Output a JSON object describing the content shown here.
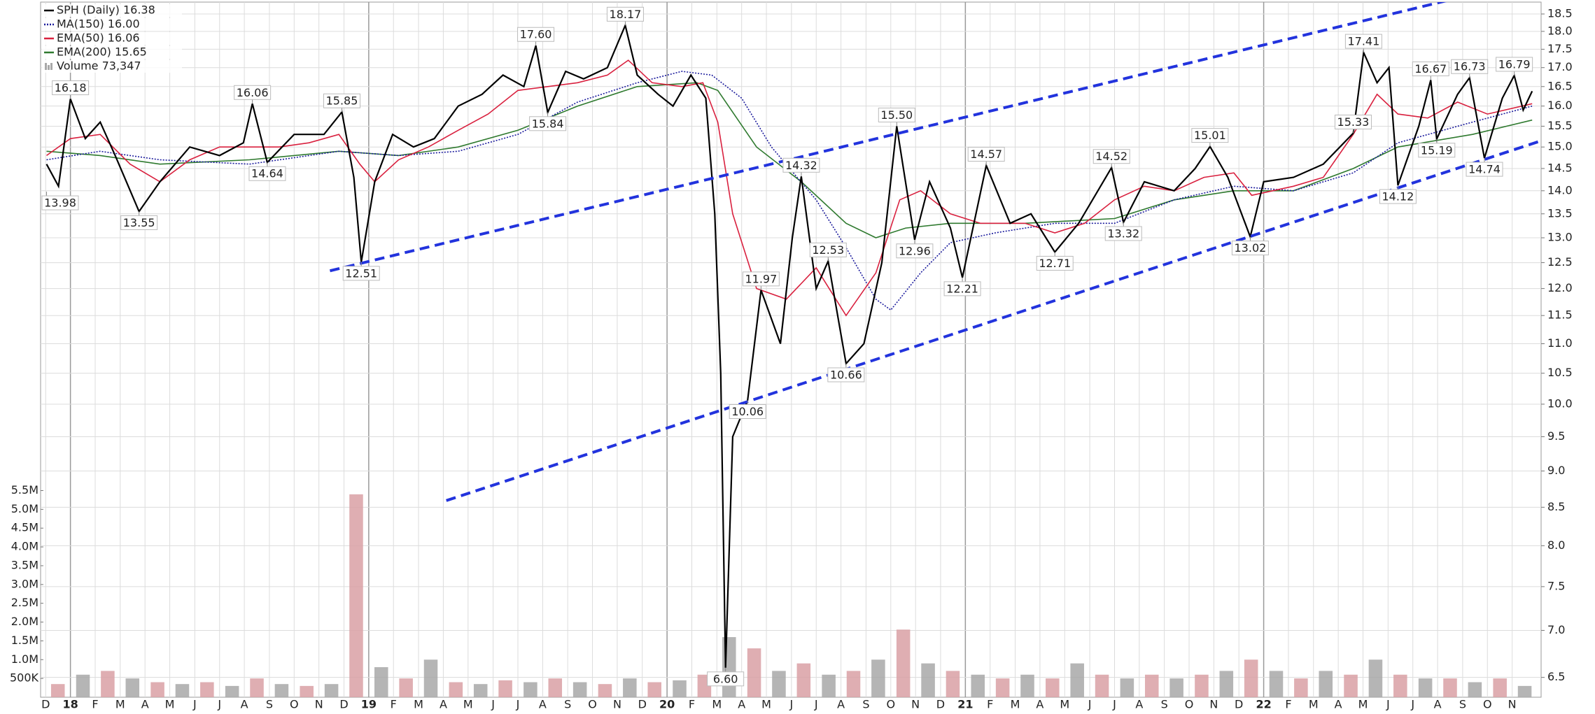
{
  "chart_data": {
    "type": "line",
    "log_scale": true,
    "grid": true,
    "xlim": [
      2017.9,
      2022.93
    ],
    "ylim": [
      6.3,
      18.85
    ],
    "xticks": [
      {
        "value": 2017.917,
        "label": "D"
      },
      {
        "value": 2018,
        "label": "18"
      },
      {
        "value": 2018.083,
        "label": "F"
      },
      {
        "value": 2018.167,
        "label": "M"
      },
      {
        "value": 2018.25,
        "label": "A"
      },
      {
        "value": 2018.333,
        "label": "M"
      },
      {
        "value": 2018.417,
        "label": "J"
      },
      {
        "value": 2018.5,
        "label": "J"
      },
      {
        "value": 2018.583,
        "label": "A"
      },
      {
        "value": 2018.667,
        "label": "S"
      },
      {
        "value": 2018.75,
        "label": "O"
      },
      {
        "value": 2018.833,
        "label": "N"
      },
      {
        "value": 2018.917,
        "label": "D"
      },
      {
        "value": 2019,
        "label": "19"
      },
      {
        "value": 2019.083,
        "label": "F"
      },
      {
        "value": 2019.167,
        "label": "M"
      },
      {
        "value": 2019.25,
        "label": "A"
      },
      {
        "value": 2019.333,
        "label": "M"
      },
      {
        "value": 2019.417,
        "label": "J"
      },
      {
        "value": 2019.5,
        "label": "J"
      },
      {
        "value": 2019.583,
        "label": "A"
      },
      {
        "value": 2019.667,
        "label": "S"
      },
      {
        "value": 2019.75,
        "label": "O"
      },
      {
        "value": 2019.833,
        "label": "N"
      },
      {
        "value": 2019.917,
        "label": "D"
      },
      {
        "value": 2020,
        "label": "20"
      },
      {
        "value": 2020.083,
        "label": "F"
      },
      {
        "value": 2020.167,
        "label": "M"
      },
      {
        "value": 2020.25,
        "label": "A"
      },
      {
        "value": 2020.333,
        "label": "M"
      },
      {
        "value": 2020.417,
        "label": "J"
      },
      {
        "value": 2020.5,
        "label": "J"
      },
      {
        "value": 2020.583,
        "label": "A"
      },
      {
        "value": 2020.667,
        "label": "S"
      },
      {
        "value": 2020.75,
        "label": "O"
      },
      {
        "value": 2020.833,
        "label": "N"
      },
      {
        "value": 2020.917,
        "label": "D"
      },
      {
        "value": 2021,
        "label": "21"
      },
      {
        "value": 2021.083,
        "label": "F"
      },
      {
        "value": 2021.167,
        "label": "M"
      },
      {
        "value": 2021.25,
        "label": "A"
      },
      {
        "value": 2021.333,
        "label": "M"
      },
      {
        "value": 2021.417,
        "label": "J"
      },
      {
        "value": 2021.5,
        "label": "J"
      },
      {
        "value": 2021.583,
        "label": "A"
      },
      {
        "value": 2021.667,
        "label": "S"
      },
      {
        "value": 2021.75,
        "label": "O"
      },
      {
        "value": 2021.833,
        "label": "N"
      },
      {
        "value": 2021.917,
        "label": "D"
      },
      {
        "value": 2022,
        "label": "22"
      },
      {
        "value": 2022.083,
        "label": "F"
      },
      {
        "value": 2022.167,
        "label": "M"
      },
      {
        "value": 2022.25,
        "label": "A"
      },
      {
        "value": 2022.333,
        "label": "M"
      },
      {
        "value": 2022.417,
        "label": "J"
      },
      {
        "value": 2022.5,
        "label": "J"
      },
      {
        "value": 2022.583,
        "label": "A"
      },
      {
        "value": 2022.667,
        "label": "S"
      },
      {
        "value": 2022.75,
        "label": "O"
      },
      {
        "value": 2022.833,
        "label": "N"
      }
    ],
    "yticks": [
      6.5,
      {
        "value": 7,
        "label": "7.0"
      },
      7.5,
      {
        "value": 8,
        "label": "8.0"
      },
      8.5,
      {
        "value": 9,
        "label": "9.0"
      },
      9.5,
      {
        "value": 10,
        "label": "10.0"
      },
      10.5,
      {
        "value": 11,
        "label": "11.0"
      },
      11.5,
      {
        "value": 12,
        "label": "12.0"
      },
      12.5,
      {
        "value": 13,
        "label": "13.0"
      },
      13.5,
      {
        "value": 14,
        "label": "14.0"
      },
      14.5,
      {
        "value": 15,
        "label": "15.0"
      },
      15.5,
      {
        "value": 16,
        "label": "16.0"
      },
      16.5,
      {
        "value": 17,
        "label": "17.0"
      },
      17.5,
      {
        "value": 18,
        "label": "18.0"
      },
      18.5
    ],
    "series": [
      {
        "name": "SPH (Daily) 16.38",
        "color": "#000000",
        "x": [
          2017.92,
          2017.96,
          2018.0,
          2018.05,
          2018.1,
          2018.15,
          2018.23,
          2018.3,
          2018.4,
          2018.5,
          2018.58,
          2018.61,
          2018.66,
          2018.75,
          2018.85,
          2018.91,
          2018.95,
          2018.975,
          2019.02,
          2019.08,
          2019.15,
          2019.22,
          2019.3,
          2019.38,
          2019.45,
          2019.52,
          2019.56,
          2019.6,
          2019.66,
          2019.72,
          2019.8,
          2019.86,
          2019.9,
          2019.97,
          2020.02,
          2020.08,
          2020.13,
          2020.16,
          2020.18,
          2020.196,
          2020.22,
          2020.27,
          2020.315,
          2020.38,
          2020.42,
          2020.45,
          2020.5,
          2020.54,
          2020.6,
          2020.66,
          2020.72,
          2020.77,
          2020.83,
          2020.88,
          2020.95,
          2020.99,
          2021.07,
          2021.15,
          2021.22,
          2021.3,
          2021.38,
          2021.49,
          2021.53,
          2021.6,
          2021.7,
          2021.77,
          2021.82,
          2021.88,
          2021.955,
          2022.0,
          2022.1,
          2022.2,
          2022.3,
          2022.335,
          2022.38,
          2022.42,
          2022.45,
          2022.52,
          2022.56,
          2022.58,
          2022.65,
          2022.69,
          2022.74,
          2022.8,
          2022.84,
          2022.87,
          2022.9
        ],
        "values": [
          14.6,
          14.1,
          16.18,
          15.2,
          15.6,
          14.8,
          13.55,
          14.2,
          15.0,
          14.8,
          15.1,
          16.06,
          14.64,
          15.3,
          15.3,
          15.85,
          14.3,
          12.51,
          14.2,
          15.3,
          15.0,
          15.2,
          16.0,
          16.3,
          16.8,
          16.5,
          17.6,
          15.84,
          16.9,
          16.7,
          17.0,
          18.17,
          16.8,
          16.3,
          16.0,
          16.8,
          16.2,
          13.5,
          10.5,
          6.6,
          9.5,
          10.06,
          11.97,
          11.0,
          13.0,
          14.32,
          12.0,
          12.53,
          10.66,
          11.0,
          12.5,
          15.5,
          12.96,
          14.2,
          13.2,
          12.21,
          14.57,
          13.3,
          13.5,
          12.71,
          13.3,
          14.52,
          13.32,
          14.2,
          14.0,
          14.5,
          15.01,
          14.3,
          13.02,
          14.2,
          14.3,
          14.6,
          15.33,
          17.41,
          16.6,
          17.0,
          14.12,
          15.5,
          16.67,
          15.19,
          16.3,
          16.73,
          14.74,
          16.2,
          16.79,
          15.9,
          16.38
        ]
      },
      {
        "name": "MA(150) 16.00",
        "color": "#1a1a9c",
        "dash": "dotted",
        "x": [
          2017.92,
          2018.1,
          2018.3,
          2018.6,
          2018.9,
          2019.1,
          2019.3,
          2019.5,
          2019.7,
          2019.9,
          2020.05,
          2020.15,
          2020.25,
          2020.35,
          2020.5,
          2020.6,
          2020.7,
          2020.75,
          2020.85,
          2020.95,
          2021.1,
          2021.3,
          2021.5,
          2021.7,
          2021.9,
          2022.1,
          2022.3,
          2022.45,
          2022.7,
          2022.9
        ],
        "values": [
          14.7,
          14.9,
          14.7,
          14.6,
          14.9,
          14.8,
          14.9,
          15.3,
          16.1,
          16.6,
          16.9,
          16.8,
          16.2,
          15.0,
          13.8,
          12.8,
          11.8,
          11.6,
          12.3,
          12.9,
          13.1,
          13.3,
          13.3,
          13.8,
          14.1,
          14.0,
          14.4,
          15.1,
          15.6,
          16.0
        ]
      },
      {
        "name": "EMA(50) 16.06",
        "color": "#d9213f",
        "x": [
          2017.92,
          2018.0,
          2018.1,
          2018.2,
          2018.3,
          2018.4,
          2018.5,
          2018.6,
          2018.7,
          2018.8,
          2018.9,
          2018.97,
          2019.02,
          2019.1,
          2019.2,
          2019.3,
          2019.4,
          2019.5,
          2019.6,
          2019.7,
          2019.8,
          2019.87,
          2019.95,
          2020.05,
          2020.12,
          2020.17,
          2020.22,
          2020.3,
          2020.4,
          2020.5,
          2020.6,
          2020.7,
          2020.78,
          2020.85,
          2020.95,
          2021.05,
          2021.2,
          2021.3,
          2021.4,
          2021.5,
          2021.6,
          2021.7,
          2021.8,
          2021.9,
          2021.96,
          2022.1,
          2022.2,
          2022.3,
          2022.38,
          2022.45,
          2022.55,
          2022.65,
          2022.75,
          2022.9
        ],
        "values": [
          14.8,
          15.2,
          15.3,
          14.6,
          14.2,
          14.7,
          15.0,
          15.0,
          15.0,
          15.1,
          15.3,
          14.6,
          14.2,
          14.7,
          15.0,
          15.4,
          15.8,
          16.4,
          16.5,
          16.6,
          16.8,
          17.2,
          16.6,
          16.5,
          16.6,
          15.6,
          13.5,
          12.0,
          11.8,
          12.4,
          11.5,
          12.3,
          13.8,
          14.0,
          13.5,
          13.3,
          13.3,
          13.1,
          13.3,
          13.8,
          14.1,
          14.0,
          14.3,
          14.4,
          13.9,
          14.1,
          14.3,
          15.3,
          16.3,
          15.8,
          15.7,
          16.1,
          15.8,
          16.06
        ]
      },
      {
        "name": "EMA(200) 15.65",
        "color": "#2f7a2f",
        "x": [
          2017.92,
          2018.1,
          2018.3,
          2018.6,
          2018.9,
          2019.1,
          2019.3,
          2019.5,
          2019.7,
          2019.9,
          2020.1,
          2020.17,
          2020.3,
          2020.45,
          2020.6,
          2020.7,
          2020.8,
          2020.95,
          2021.2,
          2021.5,
          2021.7,
          2021.9,
          2022.1,
          2022.3,
          2022.45,
          2022.7,
          2022.9
        ],
        "values": [
          14.9,
          14.8,
          14.6,
          14.7,
          14.9,
          14.8,
          15.0,
          15.4,
          16.0,
          16.5,
          16.6,
          16.4,
          15.0,
          14.2,
          13.3,
          13.0,
          13.2,
          13.3,
          13.3,
          13.4,
          13.8,
          14.0,
          14.0,
          14.5,
          15.0,
          15.3,
          15.65
        ]
      }
    ],
    "volume": {
      "name": "Volume 73,347",
      "color": "#a8a8a8",
      "bar_color": "#d9a0a4",
      "ylim": [
        0,
        18500000
      ],
      "yticks": [
        {
          "value": 500000,
          "label": "500K"
        },
        {
          "value": 1000000,
          "label": "1.0M"
        },
        {
          "value": 1500000,
          "label": "1.5M"
        },
        {
          "value": 2000000,
          "label": "2.0M"
        },
        {
          "value": 2500000,
          "label": "2.5M"
        },
        {
          "value": 3000000,
          "label": "3.0M"
        },
        {
          "value": 3500000,
          "label": "3.5M"
        },
        {
          "value": 4000000,
          "label": "4.0M"
        },
        {
          "value": 4500000,
          "label": "4.5M"
        },
        {
          "value": 5000000,
          "label": "5.0M"
        },
        {
          "value": 5500000,
          "label": "5.5M"
        }
      ],
      "x": [
        2017.958,
        2018.042,
        2018.125,
        2018.208,
        2018.292,
        2018.375,
        2018.458,
        2018.542,
        2018.625,
        2018.708,
        2018.792,
        2018.875,
        2018.958,
        2019.042,
        2019.125,
        2019.208,
        2019.292,
        2019.375,
        2019.458,
        2019.542,
        2019.625,
        2019.708,
        2019.792,
        2019.875,
        2019.958,
        2020.042,
        2020.125,
        2020.208,
        2020.292,
        2020.375,
        2020.458,
        2020.542,
        2020.625,
        2020.708,
        2020.792,
        2020.875,
        2020.958,
        2021.042,
        2021.125,
        2021.208,
        2021.292,
        2021.375,
        2021.458,
        2021.542,
        2021.625,
        2021.708,
        2021.792,
        2021.875,
        2021.958,
        2022.042,
        2022.125,
        2022.208,
        2022.292,
        2022.375,
        2022.458,
        2022.542,
        2022.625,
        2022.708,
        2022.792,
        2022.875
      ],
      "values": [
        350000,
        600000,
        700000,
        500000,
        400000,
        350000,
        400000,
        300000,
        500000,
        350000,
        300000,
        350000,
        5400000,
        800000,
        500000,
        1000000,
        400000,
        350000,
        450000,
        400000,
        500000,
        400000,
        350000,
        500000,
        400000,
        450000,
        600000,
        1600000,
        1300000,
        700000,
        900000,
        600000,
        700000,
        1000000,
        1800000,
        900000,
        700000,
        600000,
        500000,
        600000,
        500000,
        900000,
        600000,
        500000,
        600000,
        500000,
        600000,
        700000,
        1000000,
        700000,
        500000,
        700000,
        600000,
        1000000,
        600000,
        500000,
        500000,
        400000,
        500000,
        300000
      ]
    },
    "trend_lines": [
      {
        "color": "#2233dd",
        "x": [
          2018.87,
          2022.617
        ],
        "values": [
          12.34,
          18.9
        ]
      },
      {
        "color": "#2233dd",
        "x": [
          2019.26,
          2023.104
        ],
        "values": [
          8.59,
          15.56
        ]
      }
    ],
    "annotations": [
      {
        "x": 2017.92,
        "value": 13.98
      },
      {
        "x": 2018.0,
        "value": 16.18
      },
      {
        "x": 2018.23,
        "value": 13.55
      },
      {
        "x": 2018.61,
        "value": 16.06
      },
      {
        "x": 2018.66,
        "value": 14.64
      },
      {
        "x": 2018.91,
        "value": 15.85
      },
      {
        "x": 2018.975,
        "value": 12.51
      },
      {
        "x": 2019.56,
        "value": 17.6,
        "label": "17.60"
      },
      {
        "x": 2019.6,
        "value": 15.84
      },
      {
        "x": 2019.86,
        "value": 18.17
      },
      {
        "x": 2020.196,
        "value": 6.6,
        "label": "6.60"
      },
      {
        "x": 2020.27,
        "value": 10.06
      },
      {
        "x": 2020.315,
        "value": 11.97
      },
      {
        "x": 2020.45,
        "value": 14.32
      },
      {
        "x": 2020.54,
        "value": 12.53
      },
      {
        "x": 2020.6,
        "value": 10.66
      },
      {
        "x": 2020.77,
        "value": 15.5,
        "label": "15.50"
      },
      {
        "x": 2020.83,
        "value": 12.96
      },
      {
        "x": 2020.99,
        "value": 12.21
      },
      {
        "x": 2021.07,
        "value": 14.57
      },
      {
        "x": 2021.3,
        "value": 12.71
      },
      {
        "x": 2021.49,
        "value": 14.52
      },
      {
        "x": 2021.53,
        "value": 13.32
      },
      {
        "x": 2021.82,
        "value": 15.01
      },
      {
        "x": 2021.955,
        "value": 13.02
      },
      {
        "x": 2022.3,
        "value": 15.33
      },
      {
        "x": 2022.335,
        "value": 17.41
      },
      {
        "x": 2022.45,
        "value": 14.12
      },
      {
        "x": 2022.56,
        "value": 16.67
      },
      {
        "x": 2022.58,
        "value": 15.19
      },
      {
        "x": 2022.69,
        "value": 16.73
      },
      {
        "x": 2022.74,
        "value": 14.74
      },
      {
        "x": 2022.84,
        "value": 16.79
      }
    ]
  }
}
